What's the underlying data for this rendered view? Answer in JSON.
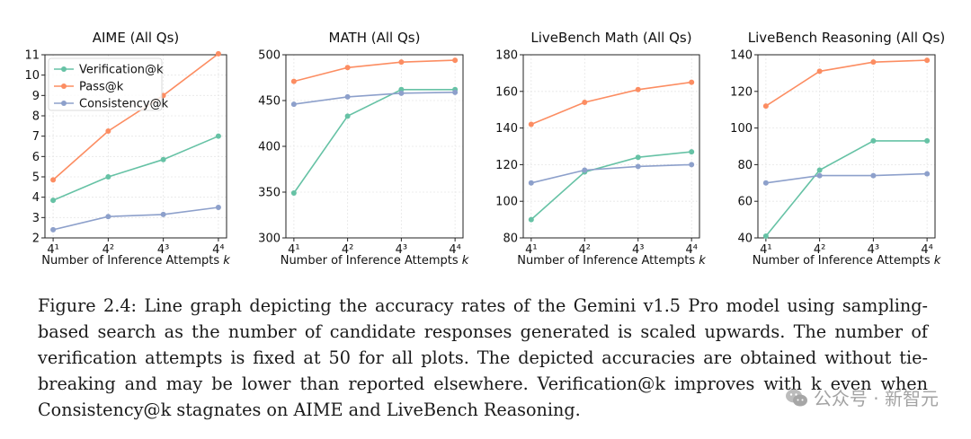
{
  "chart_data": [
    {
      "type": "line",
      "title": "AIME (All Qs)",
      "xlabel_text": "Number of Inference Attempts",
      "xlabel_var": "k",
      "x": [
        1,
        2,
        3,
        4
      ],
      "xtick_labels": [
        "4¹",
        "4²",
        "4³",
        "4⁴"
      ],
      "ylim": [
        2,
        11
      ],
      "yticks": [
        2,
        3,
        4,
        5,
        6,
        7,
        8,
        9,
        10,
        11
      ],
      "legend": "top-left",
      "series": [
        {
          "name": "Verification@k",
          "color": "#66c2a5",
          "values": [
            3.85,
            5.0,
            5.85,
            7.0
          ]
        },
        {
          "name": "Pass@k",
          "color": "#fc8d62",
          "values": [
            4.85,
            7.25,
            9.0,
            11.05
          ]
        },
        {
          "name": "Consistency@k",
          "color": "#8da0cb",
          "values": [
            2.4,
            3.05,
            3.15,
            3.5
          ]
        }
      ]
    },
    {
      "type": "line",
      "title": "MATH (All Qs)",
      "xlabel_text": "Number of Inference Attempts",
      "xlabel_var": "k",
      "x": [
        1,
        2,
        3,
        4
      ],
      "xtick_labels": [
        "4¹",
        "4²",
        "4³",
        "4⁴"
      ],
      "ylim": [
        300,
        500
      ],
      "yticks": [
        300,
        350,
        400,
        450,
        500
      ],
      "series": [
        {
          "name": "Verification@k",
          "color": "#66c2a5",
          "values": [
            349,
            433,
            462,
            462
          ]
        },
        {
          "name": "Pass@k",
          "color": "#fc8d62",
          "values": [
            471,
            486,
            492,
            494
          ]
        },
        {
          "name": "Consistency@k",
          "color": "#8da0cb",
          "values": [
            446,
            454,
            458,
            459
          ]
        }
      ]
    },
    {
      "type": "line",
      "title": "LiveBench Math (All Qs)",
      "xlabel_text": "Number of Inference Attempts",
      "xlabel_var": "k",
      "x": [
        1,
        2,
        3,
        4
      ],
      "xtick_labels": [
        "4¹",
        "4²",
        "4³",
        "4⁴"
      ],
      "ylim": [
        80,
        180
      ],
      "yticks": [
        80,
        100,
        120,
        140,
        160,
        180
      ],
      "series": [
        {
          "name": "Verification@k",
          "color": "#66c2a5",
          "values": [
            90,
            116,
            124,
            127
          ]
        },
        {
          "name": "Pass@k",
          "color": "#fc8d62",
          "values": [
            142,
            154,
            161,
            165
          ]
        },
        {
          "name": "Consistency@k",
          "color": "#8da0cb",
          "values": [
            110,
            117,
            119,
            120
          ]
        }
      ]
    },
    {
      "type": "line",
      "title": "LiveBench Reasoning (All Qs)",
      "xlabel_text": "Number of Inference Attempts",
      "xlabel_var": "k",
      "x": [
        1,
        2,
        3,
        4
      ],
      "xtick_labels": [
        "4¹",
        "4²",
        "4³",
        "4⁴"
      ],
      "ylim": [
        40,
        140
      ],
      "yticks": [
        40,
        60,
        80,
        100,
        120,
        140
      ],
      "series": [
        {
          "name": "Verification@k",
          "color": "#66c2a5",
          "values": [
            41,
            77,
            93,
            93
          ]
        },
        {
          "name": "Pass@k",
          "color": "#fc8d62",
          "values": [
            112,
            131,
            136,
            137
          ]
        },
        {
          "name": "Consistency@k",
          "color": "#8da0cb",
          "values": [
            70,
            74,
            74,
            75
          ]
        }
      ]
    }
  ],
  "caption": "Figure 2.4: Line graph depicting the accuracy rates of the Gemini v1.5 Pro model using sampling-based search as the number of candidate responses generated is scaled upwards. The number of verification attempts is fixed at 50 for all plots. The depicted accuracies are obtained without tie-breaking and may be lower than reported elsewhere. Verification@k improves with k even when Consistency@k stagnates on AIME and LiveBench Reasoning.",
  "watermark": "公众号 · 新智元"
}
